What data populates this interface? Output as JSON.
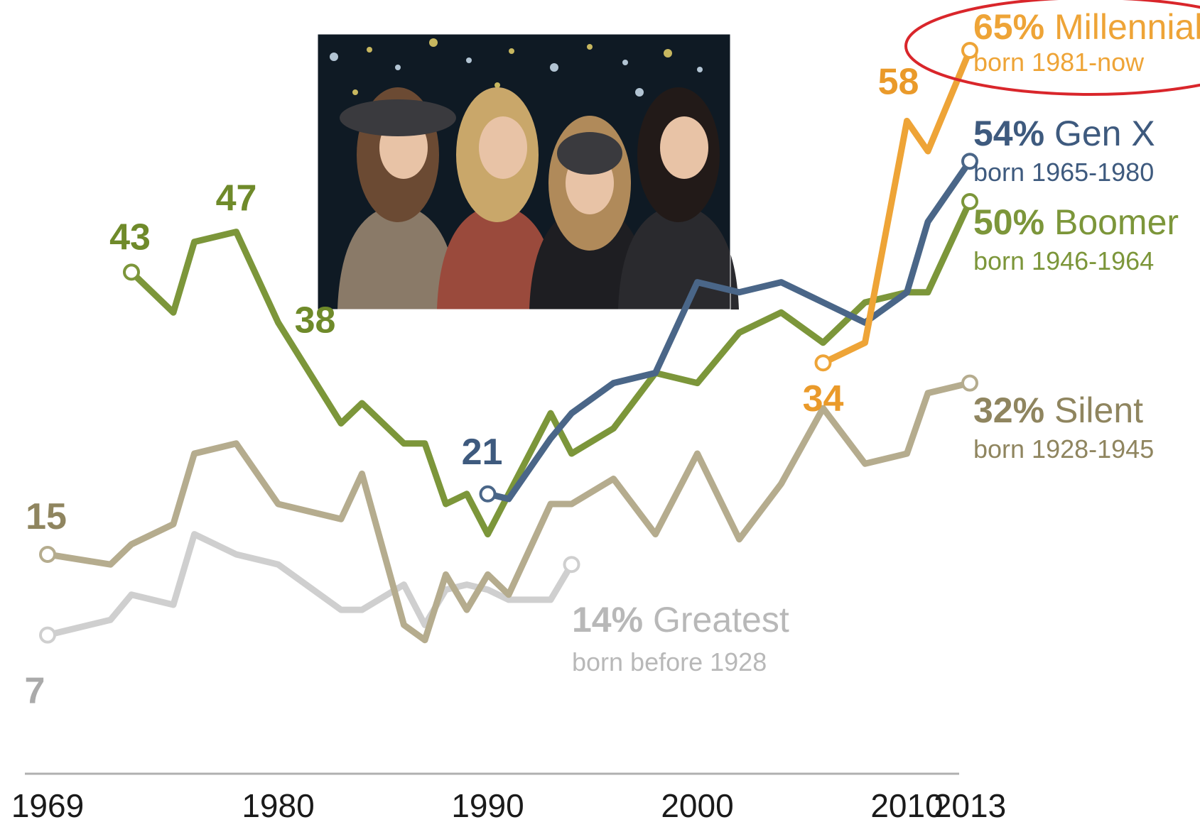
{
  "chart_data": {
    "type": "line",
    "x_ticks": [
      "1969",
      "1980",
      "1990",
      "2000",
      "2010",
      "2013"
    ],
    "xlim": [
      1969,
      2013
    ],
    "ylim": [
      0,
      70
    ],
    "grid": false,
    "legend_placement": "right (direct labels at line ends)",
    "series": [
      {
        "key": "greatest",
        "color": "#cfcfcf",
        "title_pct": "14%",
        "title_name": "Greatest",
        "subtitle": "born before 1928",
        "x": [
          1969,
          1972,
          1973,
          1975,
          1976,
          1978,
          1980,
          1983,
          1984,
          1986,
          1987,
          1988,
          1989,
          1990,
          1991,
          1993,
          1994
        ],
        "y": [
          7,
          8.5,
          11,
          10,
          17,
          15,
          14,
          9.5,
          9.5,
          12,
          8,
          11.5,
          12,
          11.5,
          10.5,
          10.5,
          14
        ]
      },
      {
        "key": "silent",
        "color": "#b5ac8e",
        "title_pct": "32%",
        "title_name": "Silent",
        "subtitle": "born 1928-1945",
        "x": [
          1969,
          1972,
          1973,
          1975,
          1976,
          1978,
          1980,
          1983,
          1984,
          1986,
          1987,
          1988,
          1989,
          1990,
          1991,
          1993,
          1994,
          1996,
          1998,
          2000,
          2002,
          2004,
          2006,
          2008,
          2010,
          2011,
          2013
        ],
        "y": [
          15,
          14,
          16,
          18,
          25,
          26,
          20,
          18.5,
          23,
          8,
          6.5,
          13,
          9.5,
          13,
          11,
          20,
          20,
          22.5,
          17,
          25,
          16.5,
          22,
          29.5,
          24,
          25,
          31,
          32
        ]
      },
      {
        "key": "boomer",
        "color": "#7c963a",
        "title_pct": "50%",
        "title_name": "Boomer",
        "subtitle": "born 1946-1964",
        "x": [
          1973,
          1975,
          1976,
          1978,
          1980,
          1983,
          1984,
          1986,
          1987,
          1988,
          1989,
          1990,
          1993,
          1994,
          1996,
          1998,
          2000,
          2002,
          2004,
          2006,
          2008,
          2010,
          2011,
          2013
        ],
        "y": [
          43,
          39,
          46,
          47,
          38,
          28,
          30,
          26,
          26,
          20,
          21,
          17,
          29,
          25,
          27.5,
          33,
          32,
          37,
          39,
          36,
          40,
          41,
          41,
          50
        ]
      },
      {
        "key": "genx",
        "color": "#4a6688",
        "title_pct": "54%",
        "title_name": "Gen X",
        "subtitle": "born 1965-1980",
        "x": [
          1990,
          1991,
          1993,
          1994,
          1996,
          1998,
          2000,
          2002,
          2004,
          2006,
          2008,
          2010,
          2011,
          2013
        ],
        "y": [
          21,
          20.5,
          26.5,
          29,
          32,
          33,
          42,
          41,
          42,
          40,
          38,
          41,
          48,
          54
        ]
      },
      {
        "key": "millennial",
        "color": "#eea437",
        "title_pct": "65%",
        "title_name": "Millennial",
        "subtitle": "born 1981-now",
        "x": [
          2006,
          2008,
          2010,
          2011,
          2013
        ],
        "y": [
          34,
          36,
          58,
          55,
          65
        ]
      }
    ],
    "value_labels": [
      {
        "series": "silent",
        "x": 1969,
        "y": 15,
        "text": "15"
      },
      {
        "series": "greatest",
        "x": 1969,
        "y": 7,
        "text": "7"
      },
      {
        "series": "boomer",
        "x": 1973,
        "y": 43,
        "text": "43"
      },
      {
        "series": "boomer",
        "x": 1978,
        "y": 47,
        "text": "47"
      },
      {
        "series": "boomer",
        "x": 1980,
        "y": 38,
        "text": "38"
      },
      {
        "series": "genx",
        "x": 1990,
        "y": 21,
        "text": "21"
      },
      {
        "series": "millennial",
        "x": 2006,
        "y": 34,
        "text": "34"
      },
      {
        "series": "millennial",
        "x": 2010,
        "y": 58,
        "text": "58"
      }
    ],
    "photo_description": "photo of four young women smiling at a night party"
  }
}
